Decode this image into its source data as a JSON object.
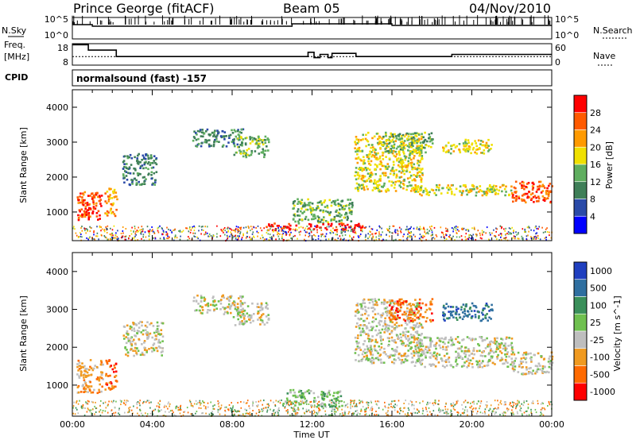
{
  "header": {
    "station": "Prince George (fitACF)",
    "beam": "Beam 05",
    "date": "04/Nov/2010"
  },
  "side_labels": {
    "nsky": "N.Sky",
    "freq_line1": "Freq.",
    "freq_line2": "[MHz]",
    "cpid": "CPID",
    "nsearch": "N.Search",
    "nave": "Nave"
  },
  "cpid_text": "normalsound (fast) -157",
  "x_title": "Time UT",
  "colors": {
    "power": [
      "#0000ff",
      "#2a4aa8",
      "#3f7f58",
      "#5fae5f",
      "#f0e000",
      "#ff9a00",
      "#ff5a00",
      "#ff0000"
    ],
    "velocity": [
      "#1f3fbf",
      "#2f6fa0",
      "#3a8f5a",
      "#6fc04f",
      "#bebebe",
      "#f09a20",
      "#ff6a00",
      "#ff0000"
    ]
  },
  "chart_data": [
    {
      "type": "line",
      "name": "nsky-nsearch",
      "title": "",
      "left_ticks": [
        "10^5",
        "10^0"
      ],
      "right_ticks": [
        "10^5",
        "10^0"
      ],
      "x_ticks": [
        "00:00",
        "04:00",
        "08:00",
        "12:00",
        "16:00",
        "20:00",
        "00:00"
      ],
      "xlim": [
        0,
        24
      ]
    },
    {
      "type": "line",
      "name": "freq-nave",
      "left_ticks": [
        "18",
        "8"
      ],
      "right_ticks": [
        "60",
        "0"
      ],
      "ylim_left": [
        8,
        18
      ],
      "ylim_right": [
        0,
        60
      ],
      "xlim": [
        0,
        24
      ],
      "freq": {
        "x": [
          0,
          0.6,
          0.8,
          1.8,
          2.2,
          11.5,
          11.8,
          12.1,
          12.4,
          12.8,
          13.0,
          13.9,
          14.2,
          18.5,
          19.0,
          23.8,
          24
        ],
        "y": [
          17.5,
          17.5,
          15.0,
          15.0,
          12.0,
          12.0,
          14.0,
          11.5,
          13.0,
          11.5,
          13.5,
          13.5,
          12.0,
          12.0,
          13.0,
          13.0,
          13.0
        ]
      },
      "nave": {
        "x": [
          0,
          24
        ],
        "y": [
          24,
          24
        ]
      }
    },
    {
      "type": "heatmap",
      "name": "power",
      "ylabel": "Slant Range [km]",
      "yticks": [
        1000,
        2000,
        3000,
        4000
      ],
      "ylim": [
        180,
        4500
      ],
      "xlim": [
        0,
        24
      ],
      "x_ticks": [
        "00:00",
        "04:00",
        "08:00",
        "12:00",
        "16:00",
        "20:00",
        "00:00"
      ],
      "colorbar_label": "Power [dB]",
      "colorbar_ticks": [
        4,
        8,
        12,
        16,
        20,
        24,
        28
      ],
      "clim": [
        0,
        32
      ],
      "patches": [
        {
          "t0": 0.2,
          "t1": 1.5,
          "r0": 800,
          "r1": 1600,
          "level": 6
        },
        {
          "t0": 0.4,
          "t1": 1.0,
          "r0": 850,
          "r1": 1150,
          "level": 7
        },
        {
          "t0": 1.6,
          "t1": 2.2,
          "r0": 900,
          "r1": 1700,
          "level": 5
        },
        {
          "t0": 2.5,
          "t1": 4.2,
          "r0": 1800,
          "r1": 2700,
          "level": 2
        },
        {
          "t0": 6.0,
          "t1": 8.5,
          "r0": 2900,
          "r1": 3400,
          "level": 2
        },
        {
          "t0": 8.0,
          "t1": 9.8,
          "r0": 2600,
          "r1": 3200,
          "level": 3
        },
        {
          "t0": 11.0,
          "t1": 14.0,
          "r0": 700,
          "r1": 1400,
          "level": 3
        },
        {
          "t0": 9.5,
          "t1": 11.2,
          "r0": 500,
          "r1": 700,
          "level": 7
        },
        {
          "t0": 11.8,
          "t1": 14.5,
          "r0": 500,
          "r1": 700,
          "level": 7
        },
        {
          "t0": 14.1,
          "t1": 17.5,
          "r0": 1600,
          "r1": 3300,
          "level": 4
        },
        {
          "t0": 15.5,
          "t1": 18.0,
          "r0": 2700,
          "r1": 3300,
          "level": 3
        },
        {
          "t0": 17.0,
          "t1": 22.0,
          "r0": 1500,
          "r1": 1800,
          "level": 4
        },
        {
          "t0": 18.5,
          "t1": 21.0,
          "r0": 2700,
          "r1": 3100,
          "level": 4
        },
        {
          "t0": 21.9,
          "t1": 24.0,
          "r0": 1300,
          "r1": 1900,
          "level": 6
        }
      ]
    },
    {
      "type": "heatmap",
      "name": "velocity",
      "ylabel": "Slant Range [km]",
      "yticks": [
        1000,
        2000,
        3000,
        4000
      ],
      "ylim": [
        180,
        4500
      ],
      "xlim": [
        0,
        24
      ],
      "x_ticks": [
        "00:00",
        "04:00",
        "08:00",
        "12:00",
        "16:00",
        "20:00",
        "00:00"
      ],
      "xlabel": "Time UT",
      "colorbar_label": "Velocity [m s^-1]",
      "colorbar_ticks": [
        "1000",
        "500",
        "100",
        "25",
        "-25",
        "-100",
        "-500",
        "-1000"
      ],
      "patches": [
        {
          "t0": 0.2,
          "t1": 1.5,
          "r0": 800,
          "r1": 1700,
          "level": 5
        },
        {
          "t0": 1.6,
          "t1": 2.2,
          "r0": 900,
          "r1": 1750,
          "level": 6
        },
        {
          "t0": 2.5,
          "t1": 4.5,
          "r0": 1800,
          "r1": 2700,
          "level": 4
        },
        {
          "t0": 6.0,
          "t1": 8.5,
          "r0": 2900,
          "r1": 3400,
          "level": 4
        },
        {
          "t0": 8.0,
          "t1": 9.8,
          "r0": 2600,
          "r1": 3200,
          "level": 4
        },
        {
          "t0": 10.5,
          "t1": 13.5,
          "r0": 450,
          "r1": 900,
          "level": 3
        },
        {
          "t0": 14.1,
          "t1": 17.5,
          "r0": 1600,
          "r1": 3300,
          "level": 4
        },
        {
          "t0": 15.8,
          "t1": 18.0,
          "r0": 2700,
          "r1": 3300,
          "level": 6
        },
        {
          "t0": 17.0,
          "t1": 22.0,
          "r0": 1500,
          "r1": 2300,
          "level": 4
        },
        {
          "t0": 18.5,
          "t1": 21.0,
          "r0": 2700,
          "r1": 3200,
          "level": 1
        },
        {
          "t0": 21.9,
          "t1": 24.0,
          "r0": 1300,
          "r1": 1900,
          "level": 4
        }
      ]
    }
  ]
}
